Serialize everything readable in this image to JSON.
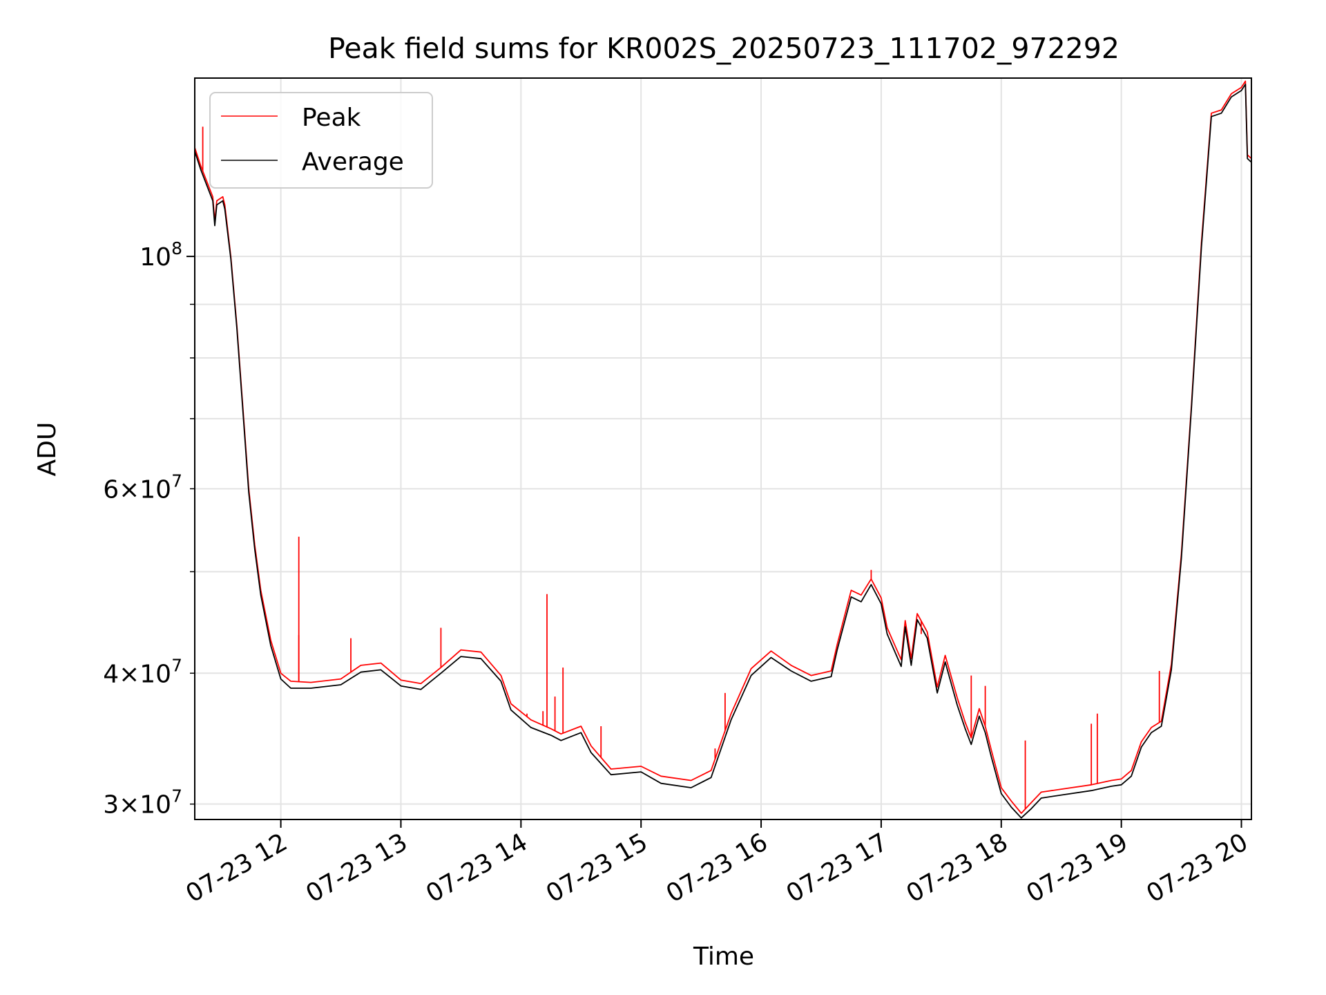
{
  "chart_data": {
    "type": "line",
    "title": "Peak field sums for KR002S_20250723_111702_972292",
    "xlabel": "Time",
    "ylabel": "ADU",
    "yscale": "log",
    "grid": true,
    "legend_position": "upper-left",
    "xlim": [
      "2025-07-23 11:17",
      "2025-07-23 20:05"
    ],
    "ylim": [
      29000000,
      148000000
    ],
    "x_ticks": [
      {
        "x": "2025-07-23 12:00",
        "label": "07-23 12"
      },
      {
        "x": "2025-07-23 13:00",
        "label": "07-23 13"
      },
      {
        "x": "2025-07-23 14:00",
        "label": "07-23 14"
      },
      {
        "x": "2025-07-23 15:00",
        "label": "07-23 15"
      },
      {
        "x": "2025-07-23 16:00",
        "label": "07-23 16"
      },
      {
        "x": "2025-07-23 17:00",
        "label": "07-23 17"
      },
      {
        "x": "2025-07-23 18:00",
        "label": "07-23 18"
      },
      {
        "x": "2025-07-23 19:00",
        "label": "07-23 19"
      },
      {
        "x": "2025-07-23 20:00",
        "label": "07-23 20"
      }
    ],
    "y_major_ticks": [
      {
        "value": 100000000,
        "base": "10",
        "exp": "8"
      }
    ],
    "y_minor_ticks": [
      {
        "value": 30000000,
        "mant": "3",
        "base": "10",
        "exp": "7",
        "labeled": true
      },
      {
        "value": 40000000,
        "mant": "4",
        "base": "10",
        "exp": "7",
        "labeled": true
      },
      {
        "value": 50000000,
        "labeled": false
      },
      {
        "value": 60000000,
        "mant": "6",
        "base": "10",
        "exp": "7",
        "labeled": true
      },
      {
        "value": 70000000,
        "labeled": false
      },
      {
        "value": 80000000,
        "labeled": false
      },
      {
        "value": 90000000,
        "labeled": false
      }
    ],
    "series": [
      {
        "name": "Peak",
        "color": "#ff0000",
        "points": [
          [
            "2025-07-23 11:17",
            127000000
          ],
          [
            "2025-07-23 11:20",
            122000000
          ],
          [
            "2025-07-23 11:26",
            114000000
          ],
          [
            "2025-07-23 11:27",
            108000000
          ],
          [
            "2025-07-23 11:28",
            113000000
          ],
          [
            "2025-07-23 11:31",
            114000000
          ],
          [
            "2025-07-23 11:32",
            112000000
          ],
          [
            "2025-07-23 11:35",
            100000000
          ],
          [
            "2025-07-23 11:38",
            86000000
          ],
          [
            "2025-07-23 11:41",
            72000000
          ],
          [
            "2025-07-23 11:44",
            60000000
          ],
          [
            "2025-07-23 11:47",
            53000000
          ],
          [
            "2025-07-23 11:50",
            48000000
          ],
          [
            "2025-07-23 11:55",
            43000000
          ],
          [
            "2025-07-23 12:00",
            40000000
          ],
          [
            "2025-07-23 12:05",
            39300000
          ],
          [
            "2025-07-23 12:15",
            39200000
          ],
          [
            "2025-07-23 12:30",
            39500000
          ],
          [
            "2025-07-23 12:40",
            40700000
          ],
          [
            "2025-07-23 12:50",
            40900000
          ],
          [
            "2025-07-23 13:00",
            39400000
          ],
          [
            "2025-07-23 13:10",
            39100000
          ],
          [
            "2025-07-23 13:20",
            40500000
          ],
          [
            "2025-07-23 13:30",
            42100000
          ],
          [
            "2025-07-23 13:40",
            41900000
          ],
          [
            "2025-07-23 13:50",
            39800000
          ],
          [
            "2025-07-23 13:55",
            37400000
          ],
          [
            "2025-07-23 14:05",
            36100000
          ],
          [
            "2025-07-23 14:15",
            35400000
          ],
          [
            "2025-07-23 14:20",
            35000000
          ],
          [
            "2025-07-23 14:30",
            35600000
          ],
          [
            "2025-07-23 14:35",
            34100000
          ],
          [
            "2025-07-23 14:45",
            32400000
          ],
          [
            "2025-07-23 15:00",
            32600000
          ],
          [
            "2025-07-23 15:10",
            31900000
          ],
          [
            "2025-07-23 15:25",
            31600000
          ],
          [
            "2025-07-23 15:35",
            32300000
          ],
          [
            "2025-07-23 15:45",
            36600000
          ],
          [
            "2025-07-23 15:55",
            40400000
          ],
          [
            "2025-07-23 16:05",
            42000000
          ],
          [
            "2025-07-23 16:15",
            40700000
          ],
          [
            "2025-07-23 16:25",
            39800000
          ],
          [
            "2025-07-23 16:35",
            40200000
          ],
          [
            "2025-07-23 16:38",
            42600000
          ],
          [
            "2025-07-23 16:45",
            48000000
          ],
          [
            "2025-07-23 16:50",
            47500000
          ],
          [
            "2025-07-23 16:55",
            49200000
          ],
          [
            "2025-07-23 17:00",
            47200000
          ],
          [
            "2025-07-23 17:03",
            44200000
          ],
          [
            "2025-07-23 17:10",
            41200000
          ],
          [
            "2025-07-23 17:12",
            44900000
          ],
          [
            "2025-07-23 17:15",
            41300000
          ],
          [
            "2025-07-23 17:18",
            45600000
          ],
          [
            "2025-07-23 17:23",
            43800000
          ],
          [
            "2025-07-23 17:28",
            38800000
          ],
          [
            "2025-07-23 17:32",
            41600000
          ],
          [
            "2025-07-23 17:38",
            37900000
          ],
          [
            "2025-07-23 17:42",
            35900000
          ],
          [
            "2025-07-23 17:45",
            34700000
          ],
          [
            "2025-07-23 17:49",
            37000000
          ],
          [
            "2025-07-23 17:52",
            35600000
          ],
          [
            "2025-07-23 17:55",
            33800000
          ],
          [
            "2025-07-23 18:00",
            31100000
          ],
          [
            "2025-07-23 18:05",
            30200000
          ],
          [
            "2025-07-23 18:10",
            29400000
          ],
          [
            "2025-07-23 18:15",
            30100000
          ],
          [
            "2025-07-23 18:20",
            30800000
          ],
          [
            "2025-07-23 18:30",
            31000000
          ],
          [
            "2025-07-23 18:45",
            31300000
          ],
          [
            "2025-07-23 18:55",
            31600000
          ],
          [
            "2025-07-23 19:00",
            31700000
          ],
          [
            "2025-07-23 19:05",
            32300000
          ],
          [
            "2025-07-23 19:10",
            34400000
          ],
          [
            "2025-07-23 19:15",
            35500000
          ],
          [
            "2025-07-23 19:20",
            36000000
          ],
          [
            "2025-07-23 19:25",
            40800000
          ],
          [
            "2025-07-23 19:30",
            52000000
          ],
          [
            "2025-07-23 19:35",
            72000000
          ],
          [
            "2025-07-23 19:40",
            103000000
          ],
          [
            "2025-07-23 19:45",
            137000000
          ],
          [
            "2025-07-23 19:50",
            138000000
          ],
          [
            "2025-07-23 19:55",
            143000000
          ],
          [
            "2025-07-23 20:00",
            145000000
          ],
          [
            "2025-07-23 20:02",
            147000000
          ],
          [
            "2025-07-23 20:03",
            125000000
          ],
          [
            "2025-07-23 20:05",
            124000000
          ]
        ]
      },
      {
        "name": "Average",
        "color": "#000000",
        "points": [
          [
            "2025-07-23 11:17",
            126000000
          ],
          [
            "2025-07-23 11:20",
            121000000
          ],
          [
            "2025-07-23 11:26",
            113000000
          ],
          [
            "2025-07-23 11:27",
            107000000
          ],
          [
            "2025-07-23 11:28",
            112000000
          ],
          [
            "2025-07-23 11:31",
            113000000
          ],
          [
            "2025-07-23 11:32",
            111000000
          ],
          [
            "2025-07-23 11:35",
            99500000
          ],
          [
            "2025-07-23 11:38",
            85500000
          ],
          [
            "2025-07-23 11:41",
            71500000
          ],
          [
            "2025-07-23 11:44",
            59500000
          ],
          [
            "2025-07-23 11:47",
            52500000
          ],
          [
            "2025-07-23 11:50",
            47500000
          ],
          [
            "2025-07-23 11:55",
            42500000
          ],
          [
            "2025-07-23 12:00",
            39500000
          ],
          [
            "2025-07-23 12:05",
            38700000
          ],
          [
            "2025-07-23 12:15",
            38700000
          ],
          [
            "2025-07-23 12:30",
            39000000
          ],
          [
            "2025-07-23 12:40",
            40100000
          ],
          [
            "2025-07-23 12:50",
            40300000
          ],
          [
            "2025-07-23 13:00",
            38900000
          ],
          [
            "2025-07-23 13:10",
            38600000
          ],
          [
            "2025-07-23 13:20",
            40000000
          ],
          [
            "2025-07-23 13:30",
            41500000
          ],
          [
            "2025-07-23 13:40",
            41300000
          ],
          [
            "2025-07-23 13:50",
            39300000
          ],
          [
            "2025-07-23 13:55",
            36900000
          ],
          [
            "2025-07-23 14:05",
            35500000
          ],
          [
            "2025-07-23 14:15",
            34900000
          ],
          [
            "2025-07-23 14:20",
            34500000
          ],
          [
            "2025-07-23 14:30",
            35100000
          ],
          [
            "2025-07-23 14:35",
            33600000
          ],
          [
            "2025-07-23 14:45",
            32000000
          ],
          [
            "2025-07-23 15:00",
            32200000
          ],
          [
            "2025-07-23 15:10",
            31400000
          ],
          [
            "2025-07-23 15:25",
            31100000
          ],
          [
            "2025-07-23 15:35",
            31800000
          ],
          [
            "2025-07-23 15:45",
            36100000
          ],
          [
            "2025-07-23 15:55",
            39800000
          ],
          [
            "2025-07-23 16:05",
            41400000
          ],
          [
            "2025-07-23 16:15",
            40200000
          ],
          [
            "2025-07-23 16:25",
            39300000
          ],
          [
            "2025-07-23 16:35",
            39700000
          ],
          [
            "2025-07-23 16:38",
            42100000
          ],
          [
            "2025-07-23 16:45",
            47300000
          ],
          [
            "2025-07-23 16:50",
            46800000
          ],
          [
            "2025-07-23 16:55",
            48600000
          ],
          [
            "2025-07-23 17:00",
            46600000
          ],
          [
            "2025-07-23 17:03",
            43600000
          ],
          [
            "2025-07-23 17:10",
            40600000
          ],
          [
            "2025-07-23 17:12",
            44300000
          ],
          [
            "2025-07-23 17:15",
            40700000
          ],
          [
            "2025-07-23 17:18",
            45000000
          ],
          [
            "2025-07-23 17:23",
            43200000
          ],
          [
            "2025-07-23 17:28",
            38300000
          ],
          [
            "2025-07-23 17:32",
            41000000
          ],
          [
            "2025-07-23 17:38",
            37300000
          ],
          [
            "2025-07-23 17:42",
            35400000
          ],
          [
            "2025-07-23 17:45",
            34200000
          ],
          [
            "2025-07-23 17:49",
            36400000
          ],
          [
            "2025-07-23 17:52",
            35100000
          ],
          [
            "2025-07-23 17:55",
            33300000
          ],
          [
            "2025-07-23 18:00",
            30700000
          ],
          [
            "2025-07-23 18:05",
            29800000
          ],
          [
            "2025-07-23 18:10",
            29100000
          ],
          [
            "2025-07-23 18:15",
            29700000
          ],
          [
            "2025-07-23 18:20",
            30400000
          ],
          [
            "2025-07-23 18:30",
            30600000
          ],
          [
            "2025-07-23 18:45",
            30900000
          ],
          [
            "2025-07-23 18:55",
            31200000
          ],
          [
            "2025-07-23 19:00",
            31300000
          ],
          [
            "2025-07-23 19:05",
            31900000
          ],
          [
            "2025-07-23 19:10",
            34000000
          ],
          [
            "2025-07-23 19:15",
            35100000
          ],
          [
            "2025-07-23 19:20",
            35600000
          ],
          [
            "2025-07-23 19:25",
            40300000
          ],
          [
            "2025-07-23 19:30",
            51500000
          ],
          [
            "2025-07-23 19:35",
            71500000
          ],
          [
            "2025-07-23 19:40",
            102000000
          ],
          [
            "2025-07-23 19:45",
            136000000
          ],
          [
            "2025-07-23 19:50",
            137000000
          ],
          [
            "2025-07-23 19:55",
            142000000
          ],
          [
            "2025-07-23 20:00",
            144000000
          ],
          [
            "2025-07-23 20:02",
            146000000
          ],
          [
            "2025-07-23 20:03",
            124000000
          ],
          [
            "2025-07-23 20:05",
            123000000
          ]
        ]
      }
    ],
    "spikes": [
      {
        "series": "Peak",
        "x": "2025-07-23 11:21",
        "value": 133000000
      },
      {
        "series": "Peak",
        "x": "2025-07-23 12:09",
        "value": 54000000
      },
      {
        "series": "Peak",
        "x": "2025-07-23 12:09",
        "value": 43500000
      },
      {
        "series": "Peak",
        "x": "2025-07-23 12:35",
        "value": 43200000
      },
      {
        "series": "Peak",
        "x": "2025-07-23 13:20",
        "value": 44200000
      },
      {
        "series": "Peak",
        "x": "2025-07-23 14:03",
        "value": 36600000
      },
      {
        "series": "Peak",
        "x": "2025-07-23 14:11",
        "value": 36800000
      },
      {
        "series": "Peak",
        "x": "2025-07-23 14:13",
        "value": 47600000
      },
      {
        "series": "Peak",
        "x": "2025-07-23 14:17",
        "value": 38000000
      },
      {
        "series": "Peak",
        "x": "2025-07-23 14:21",
        "value": 40500000
      },
      {
        "series": "Peak",
        "x": "2025-07-23 14:40",
        "value": 35600000
      },
      {
        "series": "Peak",
        "x": "2025-07-23 15:37",
        "value": 33900000
      },
      {
        "series": "Peak",
        "x": "2025-07-23 15:42",
        "value": 38300000
      },
      {
        "series": "Peak",
        "x": "2025-07-23 16:55",
        "value": 50200000
      },
      {
        "series": "Peak",
        "x": "2025-07-23 17:20",
        "value": 43600000
      },
      {
        "series": "Peak",
        "x": "2025-07-23 17:45",
        "value": 39800000
      },
      {
        "series": "Peak",
        "x": "2025-07-23 17:52",
        "value": 38900000
      },
      {
        "series": "Peak",
        "x": "2025-07-23 18:12",
        "value": 34500000
      },
      {
        "series": "Peak",
        "x": "2025-07-23 18:45",
        "value": 35800000
      },
      {
        "series": "Peak",
        "x": "2025-07-23 18:48",
        "value": 36600000
      },
      {
        "series": "Peak",
        "x": "2025-07-23 19:19",
        "value": 40200000
      }
    ]
  }
}
